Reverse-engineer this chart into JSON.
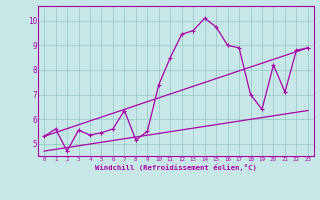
{
  "xlabel": "Windchill (Refroidissement éolien,°C)",
  "bg_color": "#c8e8e8",
  "line_color": "#aa00aa",
  "grid_color": "#99cccc",
  "xlim": [
    -0.5,
    23.5
  ],
  "ylim": [
    4.5,
    10.6
  ],
  "yticks": [
    5,
    6,
    7,
    8,
    9,
    10
  ],
  "xticks": [
    0,
    1,
    2,
    3,
    4,
    5,
    6,
    7,
    8,
    9,
    10,
    11,
    12,
    13,
    14,
    15,
    16,
    17,
    18,
    19,
    20,
    21,
    22,
    23
  ],
  "series1_x": [
    0,
    1,
    2,
    3,
    4,
    5,
    6,
    7,
    8,
    9,
    10,
    11,
    12,
    13,
    14,
    15,
    16,
    17,
    18,
    19,
    20,
    21,
    22,
    23
  ],
  "series1_y": [
    5.3,
    5.6,
    4.7,
    5.55,
    5.35,
    5.45,
    5.6,
    6.35,
    5.15,
    5.5,
    7.4,
    8.5,
    9.45,
    9.6,
    10.1,
    9.75,
    9.0,
    8.9,
    7.0,
    6.4,
    8.2,
    7.1,
    8.8,
    8.9
  ],
  "series2_x": [
    0,
    23
  ],
  "series2_y": [
    5.3,
    8.9
  ],
  "series3_x": [
    0,
    23
  ],
  "series3_y": [
    4.7,
    6.35
  ],
  "lw": 0.9
}
